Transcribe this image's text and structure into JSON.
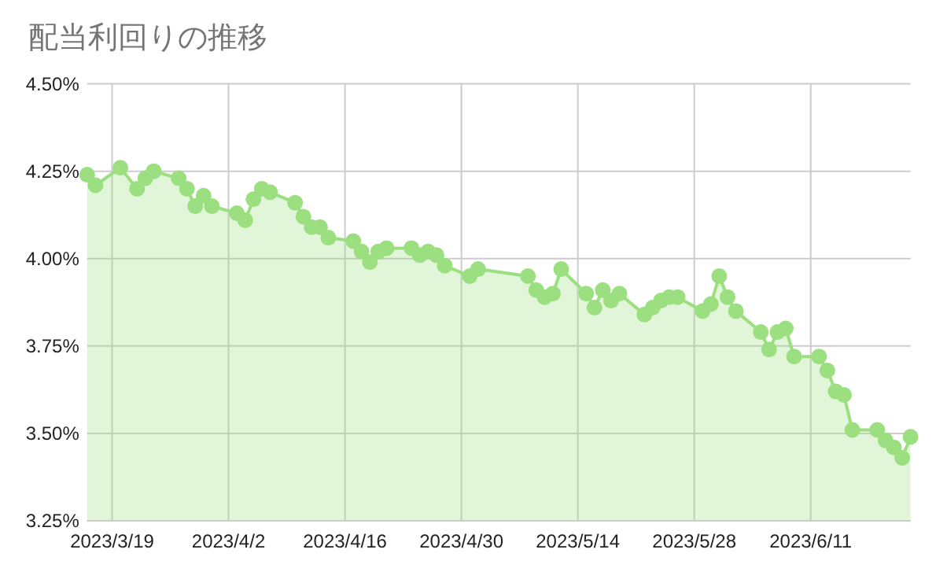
{
  "chart_data": {
    "type": "area",
    "title": "配当利回りの推移",
    "marker": "circle",
    "grid": true,
    "x": [
      "2023-03-16",
      "2023-03-17",
      "2023-03-20",
      "2023-03-22",
      "2023-03-23",
      "2023-03-24",
      "2023-03-27",
      "2023-03-28",
      "2023-03-29",
      "2023-03-30",
      "2023-03-31",
      "2023-04-03",
      "2023-04-04",
      "2023-04-05",
      "2023-04-06",
      "2023-04-07",
      "2023-04-10",
      "2023-04-11",
      "2023-04-12",
      "2023-04-13",
      "2023-04-14",
      "2023-04-17",
      "2023-04-18",
      "2023-04-19",
      "2023-04-20",
      "2023-04-21",
      "2023-04-24",
      "2023-04-25",
      "2023-04-26",
      "2023-04-27",
      "2023-04-28",
      "2023-05-01",
      "2023-05-02",
      "2023-05-08",
      "2023-05-09",
      "2023-05-10",
      "2023-05-11",
      "2023-05-12",
      "2023-05-15",
      "2023-05-16",
      "2023-05-17",
      "2023-05-18",
      "2023-05-19",
      "2023-05-22",
      "2023-05-23",
      "2023-05-24",
      "2023-05-25",
      "2023-05-26",
      "2023-05-29",
      "2023-05-30",
      "2023-05-31",
      "2023-06-01",
      "2023-06-02",
      "2023-06-05",
      "2023-06-06",
      "2023-06-07",
      "2023-06-08",
      "2023-06-09",
      "2023-06-12",
      "2023-06-13",
      "2023-06-14",
      "2023-06-15",
      "2023-06-16",
      "2023-06-19",
      "2023-06-20",
      "2023-06-21",
      "2023-06-22",
      "2023-06-23"
    ],
    "series": [
      {
        "color": "#9bdf80",
        "values": [
          4.24,
          4.21,
          4.26,
          4.2,
          4.23,
          4.25,
          4.23,
          4.2,
          4.15,
          4.18,
          4.15,
          4.13,
          4.11,
          4.17,
          4.2,
          4.19,
          4.16,
          4.12,
          4.09,
          4.09,
          4.06,
          4.05,
          4.02,
          3.99,
          4.02,
          4.03,
          4.03,
          4.01,
          4.02,
          4.01,
          3.98,
          3.95,
          3.97,
          3.95,
          3.91,
          3.89,
          3.9,
          3.97,
          3.9,
          3.86,
          3.91,
          3.88,
          3.9,
          3.84,
          3.86,
          3.88,
          3.89,
          3.89,
          3.85,
          3.87,
          3.95,
          3.89,
          3.85,
          3.79,
          3.74,
          3.79,
          3.8,
          3.72,
          3.72,
          3.68,
          3.62,
          3.61,
          3.51,
          3.51,
          3.48,
          3.46,
          3.43,
          3.49
        ]
      }
    ],
    "xlim": [
      "2023-03-16",
      "2023-06-23"
    ],
    "xticks": [
      {
        "value": "2023-03-19",
        "label": "2023/3/19"
      },
      {
        "value": "2023-04-02",
        "label": "2023/4/2"
      },
      {
        "value": "2023-04-16",
        "label": "2023/4/16"
      },
      {
        "value": "2023-04-30",
        "label": "2023/4/30"
      },
      {
        "value": "2023-05-14",
        "label": "2023/5/14"
      },
      {
        "value": "2023-05-28",
        "label": "2023/5/28"
      },
      {
        "value": "2023-06-11",
        "label": "2023/6/11"
      }
    ],
    "ylim": [
      3.25,
      4.5
    ],
    "yticks": [
      {
        "value": 3.25,
        "label": "3.25%"
      },
      {
        "value": 3.5,
        "label": "3.50%"
      },
      {
        "value": 3.75,
        "label": "3.75%"
      },
      {
        "value": 4.0,
        "label": "4.00%"
      },
      {
        "value": 4.25,
        "label": "4.25%"
      },
      {
        "value": 4.5,
        "label": "4.50%"
      }
    ]
  }
}
